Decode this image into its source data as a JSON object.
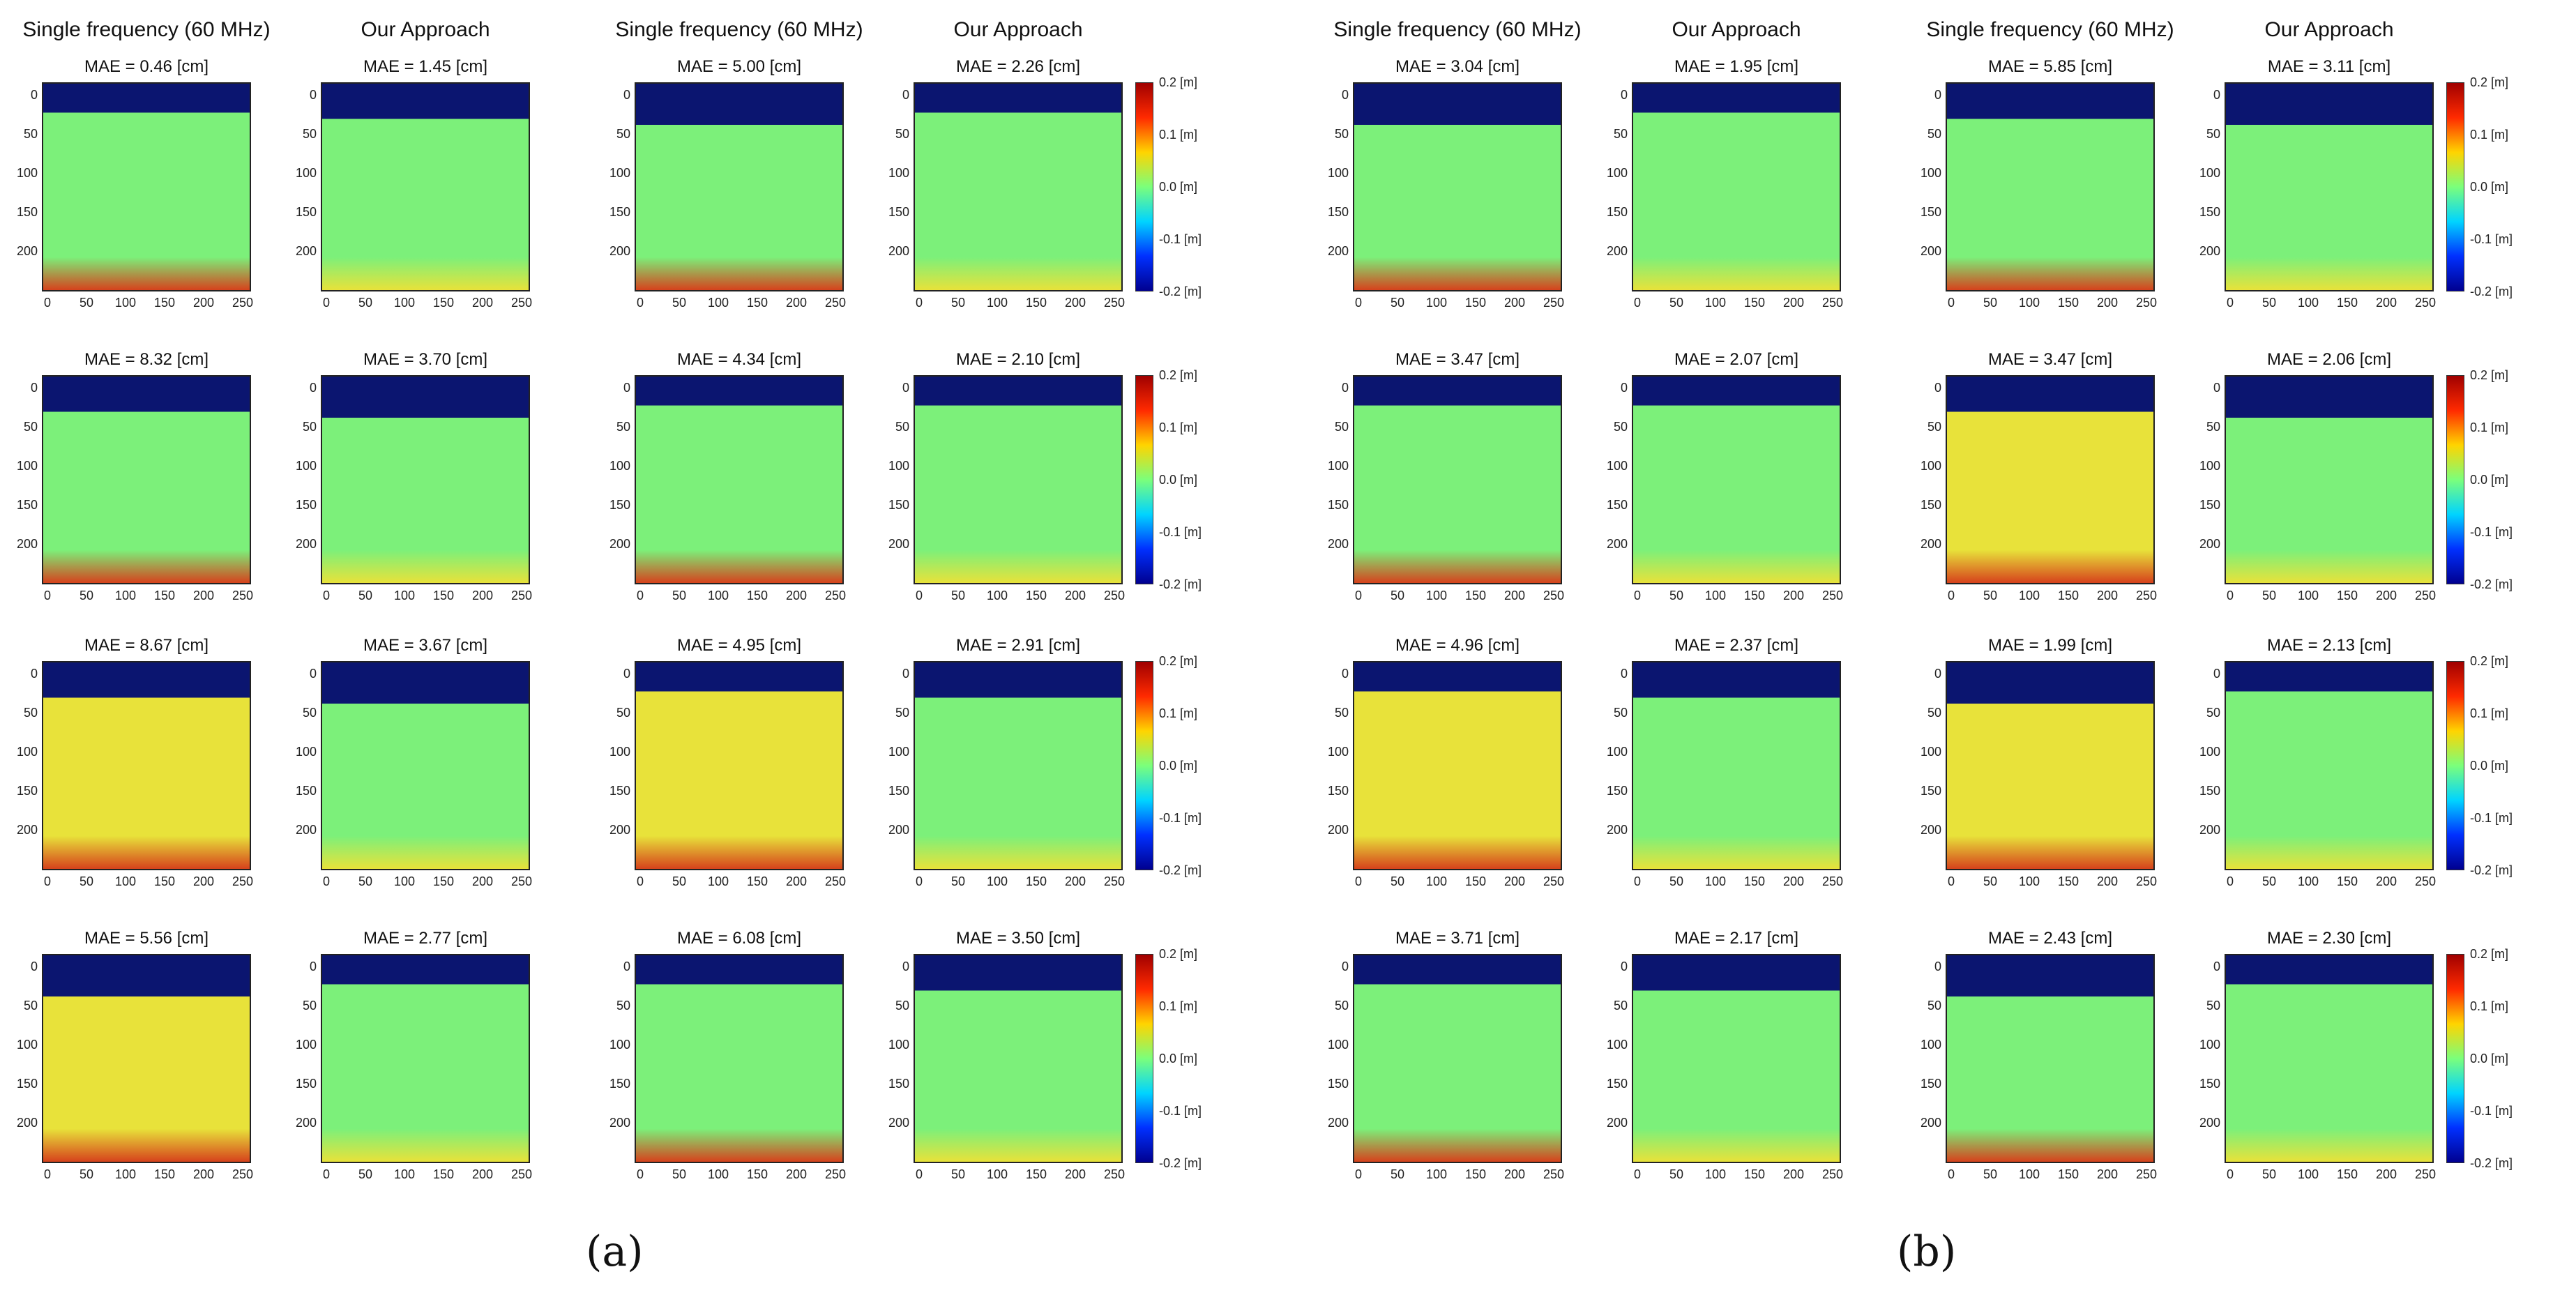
{
  "column_headers": [
    "Single frequency (60 MHz)",
    "Our Approach",
    "Single frequency (60 MHz)",
    "Our Approach"
  ],
  "axes": {
    "y_ticks": [
      "0",
      "50",
      "100",
      "150",
      "200"
    ],
    "x_ticks": [
      "0",
      "50",
      "100",
      "150",
      "200",
      "250"
    ]
  },
  "colorbar": {
    "ticks": [
      "0.2 [m]",
      "0.1 [m]",
      "0.0 [m]",
      "-0.1 [m]",
      "-0.2 [m]"
    ],
    "colors": [
      "#a00000",
      "#ff2a00",
      "#ffd400",
      "#7bff7b",
      "#00d4ff",
      "#0030ff",
      "#00008f"
    ]
  },
  "colors": {
    "background_band": "#0b1570",
    "error_green": "#7cf07a",
    "error_yellow": "#e8e23a",
    "error_red": "#d6421c"
  },
  "groups": [
    {
      "label_letter": "a",
      "label": "(a)",
      "rows": [
        [
          "MAE = 0.46 [cm]",
          "MAE = 1.45 [cm]",
          "MAE = 5.00 [cm]",
          "MAE = 2.26 [cm]"
        ],
        [
          "MAE = 8.32 [cm]",
          "MAE = 3.70 [cm]",
          "MAE = 4.34 [cm]",
          "MAE = 2.10 [cm]"
        ],
        [
          "MAE = 8.67 [cm]",
          "MAE = 3.67 [cm]",
          "MAE = 4.95 [cm]",
          "MAE = 2.91 [cm]"
        ],
        [
          "MAE = 5.56 [cm]",
          "MAE = 2.77 [cm]",
          "MAE = 6.08 [cm]",
          "MAE = 3.50 [cm]"
        ]
      ]
    },
    {
      "label_letter": "b",
      "label": "(b)",
      "rows": [
        [
          "MAE = 3.04 [cm]",
          "MAE = 1.95 [cm]",
          "MAE = 5.85 [cm]",
          "MAE = 3.11 [cm]"
        ],
        [
          "MAE = 3.47 [cm]",
          "MAE = 2.07 [cm]",
          "MAE = 3.47 [cm]",
          "MAE = 2.06 [cm]"
        ],
        [
          "MAE = 4.96 [cm]",
          "MAE = 2.37 [cm]",
          "MAE = 1.99 [cm]",
          "MAE = 2.13 [cm]"
        ],
        [
          "MAE = 3.71 [cm]",
          "MAE = 2.17 [cm]",
          "MAE = 2.43 [cm]",
          "MAE = 2.30 [cm]"
        ]
      ]
    }
  ]
}
